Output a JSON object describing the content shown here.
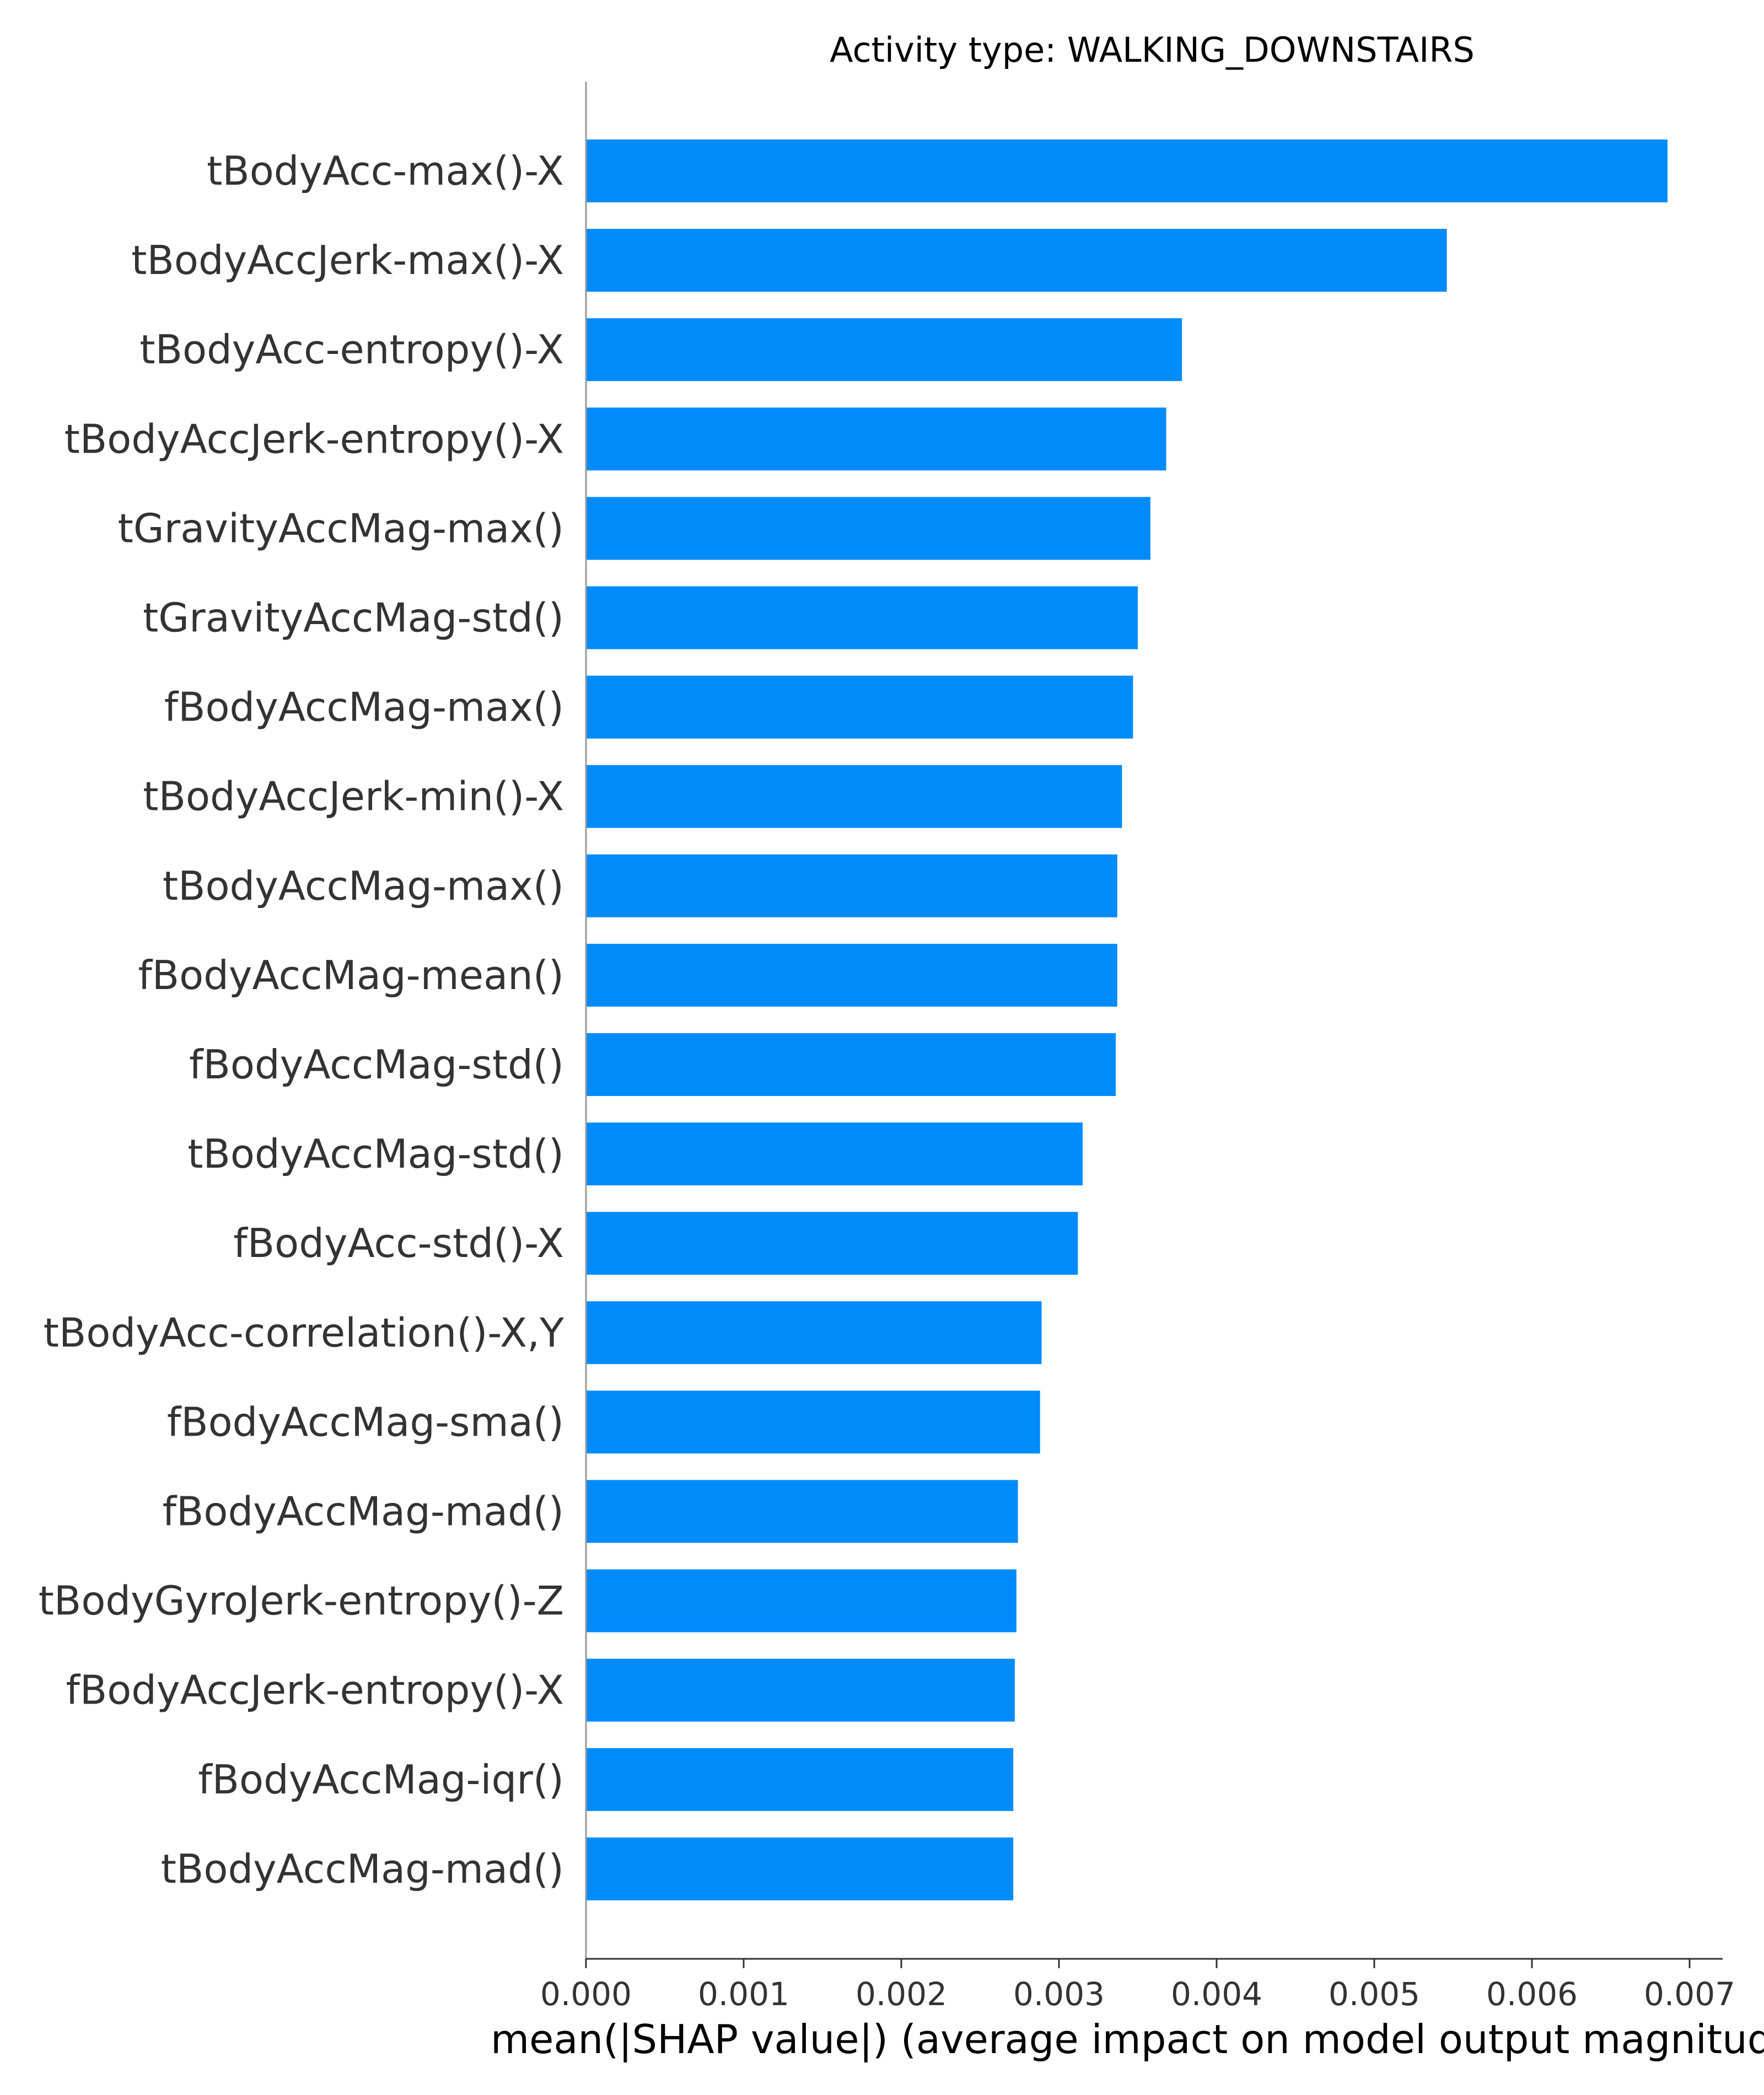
{
  "chart_data": {
    "type": "bar",
    "orientation": "horizontal",
    "title": "Activity type: WALKING_DOWNSTAIRS",
    "xlabel": "mean(|SHAP value|) (average impact on model output magnitude)",
    "xlim": [
      0,
      0.0072
    ],
    "xticks": [
      "0.000",
      "0.001",
      "0.002",
      "0.003",
      "0.004",
      "0.005",
      "0.006",
      "0.007"
    ],
    "bar_color": "#008bfb",
    "categories": [
      "tBodyAcc-max()-X",
      "tBodyAccJerk-max()-X",
      "tBodyAcc-entropy()-X",
      "tBodyAccJerk-entropy()-X",
      "tGravityAccMag-max()",
      "tGravityAccMag-std()",
      "fBodyAccMag-max()",
      "tBodyAccJerk-min()-X",
      "tBodyAccMag-max()",
      "fBodyAccMag-mean()",
      "fBodyAccMag-std()",
      "tBodyAccMag-std()",
      "fBodyAcc-std()-X",
      "tBodyAcc-correlation()-X,Y",
      "fBodyAccMag-sma()",
      "fBodyAccMag-mad()",
      "tBodyGyroJerk-entropy()-Z",
      "fBodyAccJerk-entropy()-X",
      "fBodyAccMag-iqr()",
      "tBodyAccMag-mad()"
    ],
    "values": [
      0.00686,
      0.00546,
      0.00378,
      0.00368,
      0.00358,
      0.0035,
      0.00347,
      0.0034,
      0.00337,
      0.00337,
      0.00336,
      0.00315,
      0.00312,
      0.00289,
      0.00288,
      0.00274,
      0.00273,
      0.00272,
      0.00271,
      0.00271
    ]
  }
}
